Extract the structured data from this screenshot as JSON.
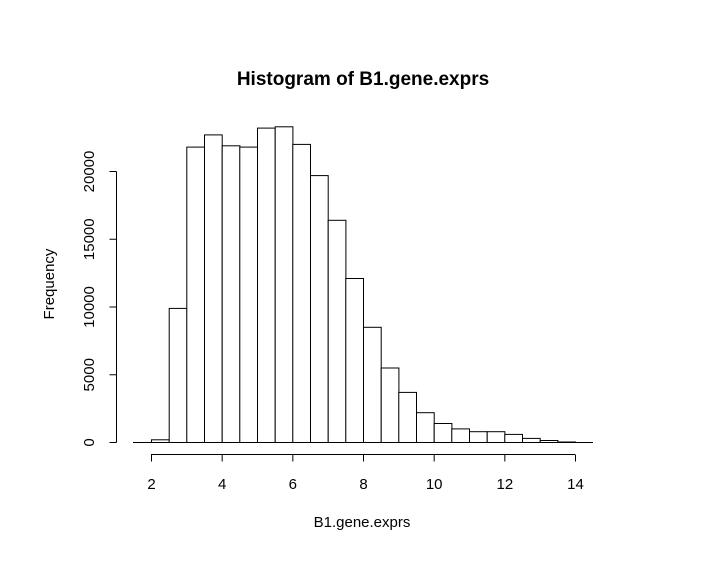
{
  "chart_data": {
    "type": "bar",
    "title": "Histogram of B1.gene.exprs",
    "xlabel": "B1.gene.exprs",
    "ylabel": "Frequency",
    "x_ticks": [
      2,
      4,
      6,
      8,
      10,
      12,
      14
    ],
    "y_ticks": [
      0,
      5000,
      10000,
      15000,
      20000
    ],
    "xlim": [
      2,
      14
    ],
    "ylim": [
      0,
      21000
    ],
    "bin_edges": [
      2,
      2.5,
      3,
      3.5,
      4,
      4.5,
      5,
      5.5,
      6,
      6.5,
      7,
      7.5,
      8,
      8.5,
      9,
      9.5,
      10,
      10.5,
      11,
      11.5,
      12,
      12.5,
      13,
      13.5,
      14
    ],
    "values": [
      200,
      9900,
      21800,
      22700,
      21900,
      21800,
      23200,
      23300,
      22000,
      19700,
      16400,
      12100,
      8500,
      5500,
      3700,
      2200,
      1400,
      1000,
      800,
      800,
      600,
      300,
      150,
      40
    ],
    "grid": false,
    "legend": "none",
    "colors": {
      "bar_fill": "#ffffff",
      "bar_stroke": "#000000"
    }
  }
}
